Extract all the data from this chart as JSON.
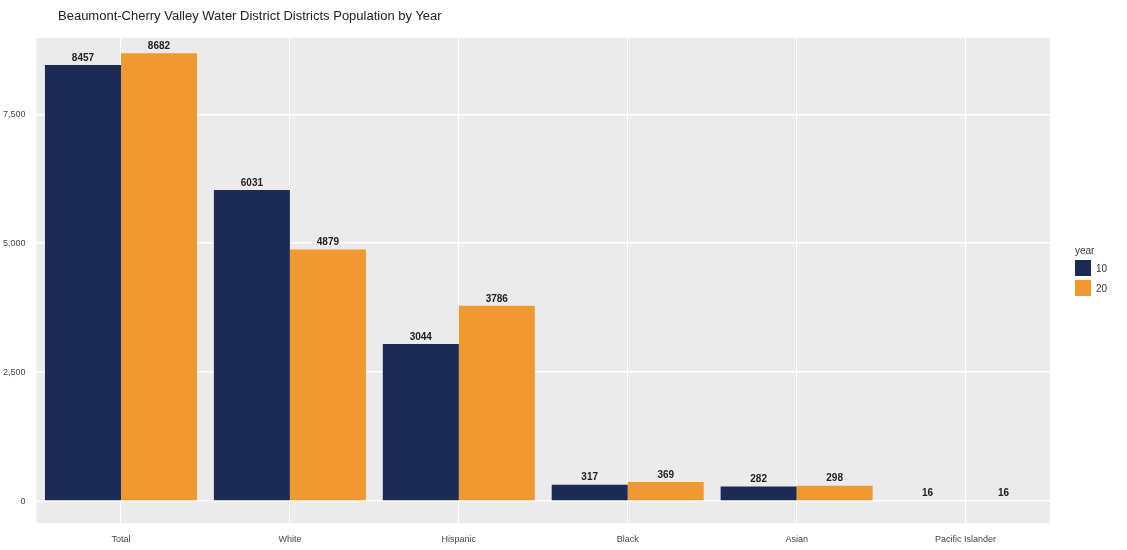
{
  "chart_data": {
    "type": "bar",
    "title": "Beaumont-Cherry Valley Water District Districts Population by Year",
    "categories": [
      "Total",
      "White",
      "Hispanic",
      "Black",
      "Asian",
      "Pacific Islander"
    ],
    "series": [
      {
        "name": "10",
        "color": "#1c2a56",
        "values": [
          8457,
          6031,
          3044,
          317,
          282,
          16
        ]
      },
      {
        "name": "20",
        "color": "#f0992e",
        "values": [
          8682,
          4879,
          3786,
          369,
          298,
          16
        ]
      }
    ],
    "ylim": [
      -430,
      8980
    ],
    "yticks": [
      {
        "value": 0,
        "label": "0"
      },
      {
        "value": 2500,
        "label": "2,500"
      },
      {
        "value": 5000,
        "label": "5,000"
      },
      {
        "value": 7500,
        "label": "7,500"
      }
    ],
    "legend": "right",
    "legend_title": "year",
    "grid": true,
    "data_labels": true
  }
}
